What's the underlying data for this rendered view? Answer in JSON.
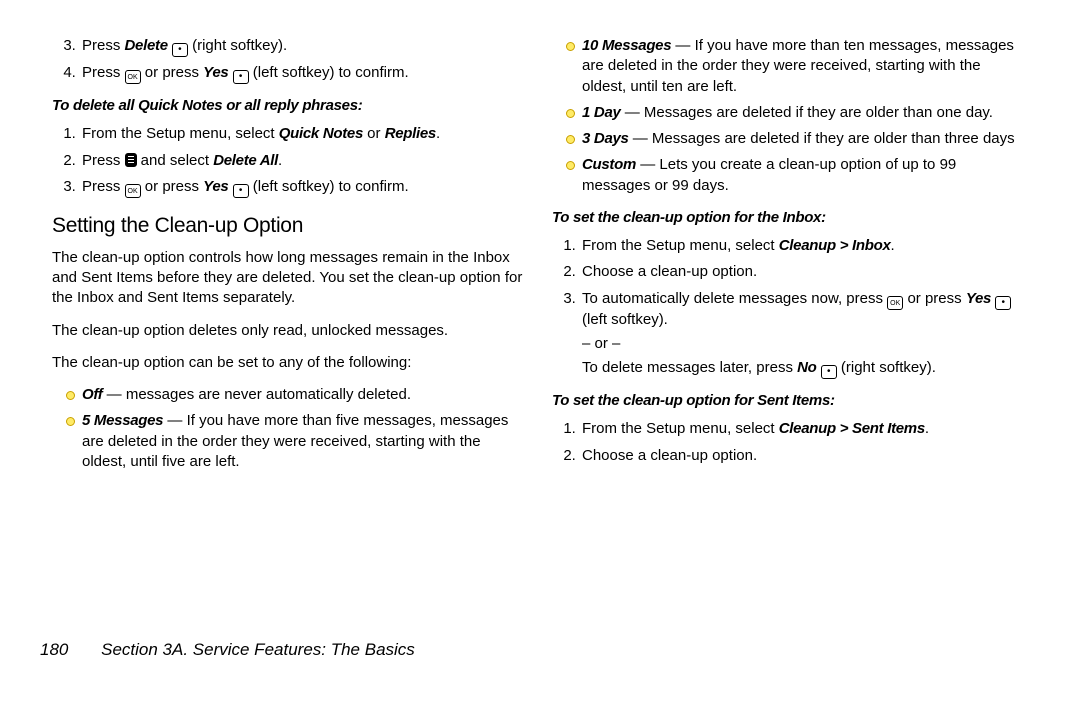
{
  "left": {
    "step3": {
      "pre": "Press ",
      "bold": "Delete",
      "post": " (right softkey)."
    },
    "step4": {
      "pre": "Press ",
      "mid": " or press ",
      "bold": "Yes",
      "post": " (left softkey) to confirm."
    },
    "subhead1": "To delete all Quick Notes or all reply phrases:",
    "qn1": {
      "pre": "From the Setup menu, select ",
      "b1": "Quick Notes",
      "mid": " or ",
      "b2": "Replies",
      "post": "."
    },
    "qn2": {
      "pre": "Press ",
      "mid": " and select ",
      "bold": "Delete All",
      "post": "."
    },
    "qn3": {
      "pre": "Press ",
      "mid": " or press ",
      "bold": "Yes",
      "post": " (left softkey) to confirm."
    },
    "heading": "Setting the Clean-up Option",
    "para1": "The clean-up option controls how long messages remain in the Inbox and Sent Items before they are deleted. You set the clean-up option for the Inbox and Sent Items separately.",
    "para2": "The clean-up option deletes only read, unlocked messages.",
    "para3": "The clean-up option can be set to any of the following:",
    "b_off": {
      "b": "Off",
      "t": " — messages are never automatically deleted."
    },
    "b_5": {
      "b": "5 Messages",
      "t": " — If you have more than five messages, messages are deleted in the order they were received, starting with the oldest, until five are left."
    }
  },
  "right": {
    "b_10": {
      "b": "10 Messages",
      "t": " — If you have more than ten messages, messages are deleted in the order they were received, starting with the oldest, until ten are left."
    },
    "b_1d": {
      "b": "1 Day",
      "t": " — Messages are deleted if they are older than one day."
    },
    "b_3d": {
      "b": "3 Days",
      "t": " — Messages are deleted if they are older than three days"
    },
    "b_custom": {
      "b": "Custom",
      "t": " — Lets you create a clean-up option of up to 99 messages or 99 days."
    },
    "subhead2": "To set the clean-up option for the Inbox:",
    "in1": {
      "pre": "From the Setup menu, select ",
      "bold": "Cleanup > Inbox",
      "post": "."
    },
    "in2": "Choose a clean-up option.",
    "in3a": {
      "pre": "To automatically delete messages now, press ",
      "mid": " or press ",
      "bold": "Yes",
      "post": " (left softkey)."
    },
    "in3or": "– or –",
    "in3b": {
      "pre": "To delete messages later, press ",
      "bold": "No",
      "post": " (right softkey)."
    },
    "subhead3": "To set the clean-up option for Sent Items:",
    "si1": {
      "pre": "From the Setup menu, select ",
      "bold": "Cleanup > Sent Items",
      "post": "."
    },
    "si2": "Choose a clean-up option."
  },
  "footer": {
    "page": "180",
    "section": "Section 3A. Service Features: The Basics"
  }
}
